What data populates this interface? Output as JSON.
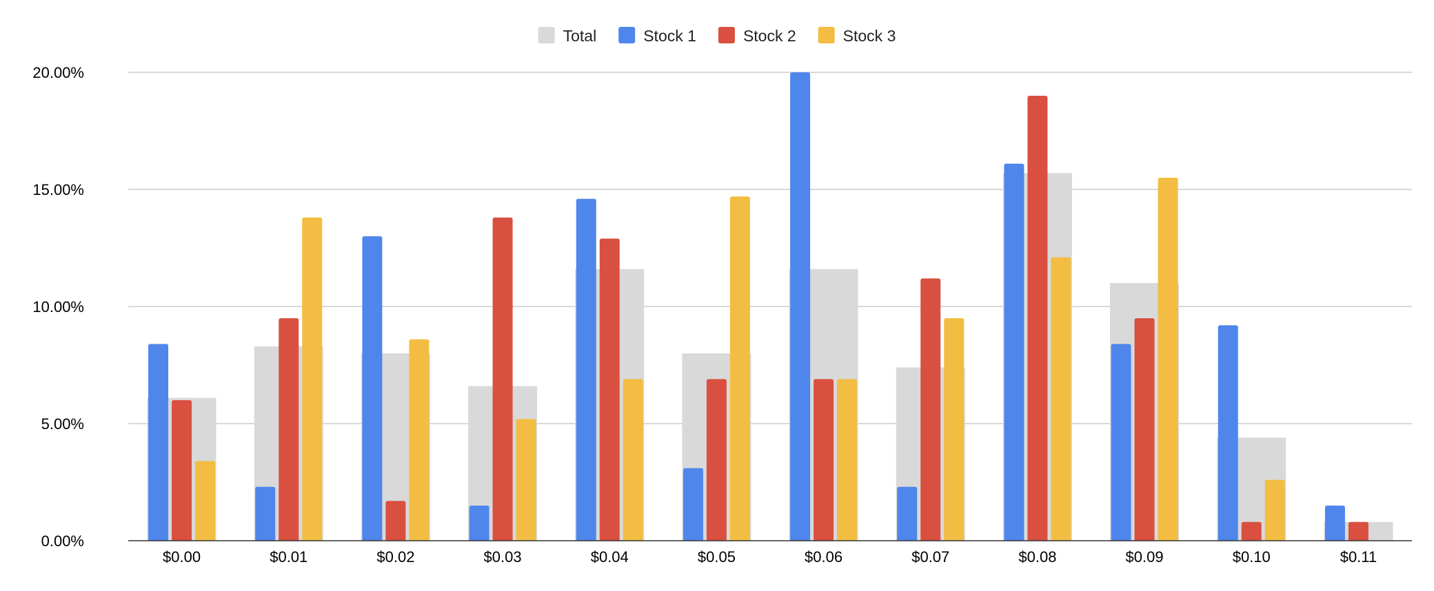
{
  "chart_data": {
    "type": "bar",
    "title": "",
    "xlabel": "",
    "ylabel": "",
    "legend_position": "top-center",
    "grid": true,
    "ylim": [
      0,
      20
    ],
    "y_ticks": [
      0,
      5,
      10,
      15,
      20
    ],
    "y_tick_labels": [
      "0.00%",
      "5.00%",
      "10.00%",
      "15.00%",
      "20.00%"
    ],
    "categories": [
      "$0.00",
      "$0.01",
      "$0.02",
      "$0.03",
      "$0.04",
      "$0.05",
      "$0.06",
      "$0.07",
      "$0.08",
      "$0.09",
      "$0.10",
      "$0.11"
    ],
    "total": {
      "name": "Total",
      "color": "#d9d9d9",
      "values": [
        6.1,
        8.3,
        8.0,
        6.6,
        11.6,
        8.0,
        11.6,
        7.4,
        15.7,
        11.0,
        4.4,
        0.8
      ]
    },
    "series": [
      {
        "name": "Stock 1",
        "color": "#4f86ec",
        "values": [
          8.4,
          2.3,
          13.0,
          1.5,
          14.6,
          3.1,
          20.0,
          2.3,
          16.1,
          8.4,
          9.2,
          1.5
        ]
      },
      {
        "name": "Stock 2",
        "color": "#d95040",
        "values": [
          6.0,
          9.5,
          1.7,
          13.8,
          12.9,
          6.9,
          6.9,
          11.2,
          19.0,
          9.5,
          0.8,
          0.8
        ]
      },
      {
        "name": "Stock 3",
        "color": "#f2bd42",
        "values": [
          3.4,
          13.8,
          8.6,
          5.2,
          6.9,
          14.7,
          6.9,
          9.5,
          12.1,
          15.5,
          2.6,
          null
        ]
      }
    ]
  }
}
